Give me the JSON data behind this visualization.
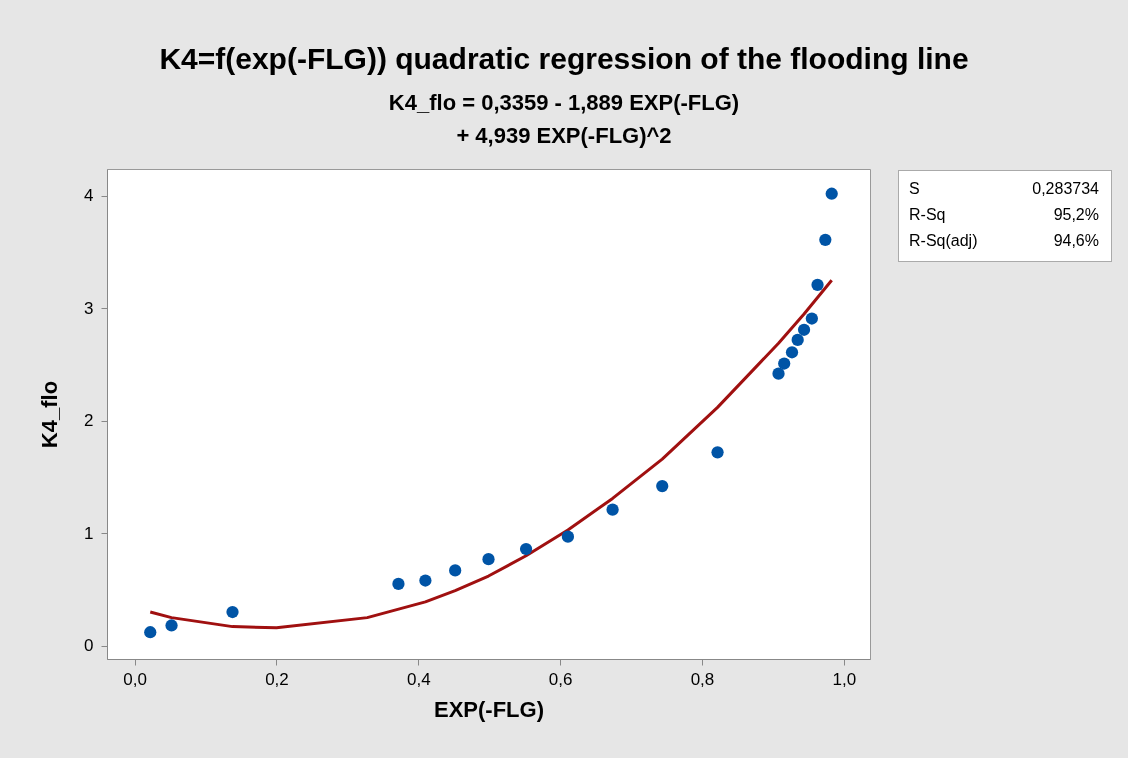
{
  "chart_data": {
    "type": "scatter",
    "title": "K4=f(exp(-FLG)) quadratic regression of the flooding line",
    "subtitle": "K4_flo = 0,3359 - 1,889 EXP(-FLG)\n+ 4,939 EXP(-FLG)^2",
    "xlabel": "EXP(-FLG)",
    "ylabel": "K4_flo",
    "xlim": [
      -0.039,
      1.037
    ],
    "ylim": [
      -0.118,
      4.24
    ],
    "xticks": [
      {
        "value": 0,
        "label": "0,0"
      },
      {
        "value": 0.2,
        "label": "0,2"
      },
      {
        "value": 0.4,
        "label": "0,4"
      },
      {
        "value": 0.6,
        "label": "0,6"
      },
      {
        "value": 0.8,
        "label": "0,8"
      },
      {
        "value": 1,
        "label": "1,0"
      }
    ],
    "yticks": [
      0,
      1,
      2,
      3,
      4
    ],
    "grid": false,
    "marker": "circle",
    "annotations": [
      "S",
      "0,283734",
      "R-Sq",
      "95,2%",
      "R-Sq(adj)",
      "94,6%"
    ],
    "series": [
      {
        "color": "#0054a6",
        "x": [
          0.022,
          0.052,
          0.138,
          0.372,
          0.41,
          0.452,
          0.499,
          0.552,
          0.611,
          0.674,
          0.744,
          0.822,
          0.908,
          0.916,
          0.927,
          0.935,
          0.944,
          0.955,
          0.963,
          0.974,
          0.983
        ],
        "values": [
          0.12,
          0.18,
          0.3,
          0.55,
          0.58,
          0.67,
          0.77,
          0.86,
          0.97,
          1.21,
          1.42,
          1.72,
          2.42,
          2.51,
          2.61,
          2.72,
          2.81,
          2.91,
          3.21,
          3.61,
          4.02
        ]
      },
      {
        "type": "line",
        "color": "#a01010",
        "line_style": "solid",
        "marker": "none",
        "x": [
          0.022,
          0.052,
          0.138,
          0.2,
          0.328,
          0.41,
          0.452,
          0.499,
          0.552,
          0.611,
          0.674,
          0.744,
          0.822,
          0.908,
          0.944,
          0.983
        ],
        "values": [
          0.3,
          0.25,
          0.17,
          0.16,
          0.25,
          0.39,
          0.49,
          0.62,
          0.8,
          1.03,
          1.31,
          1.66,
          2.12,
          2.69,
          2.95,
          3.25
        ]
      }
    ]
  }
}
